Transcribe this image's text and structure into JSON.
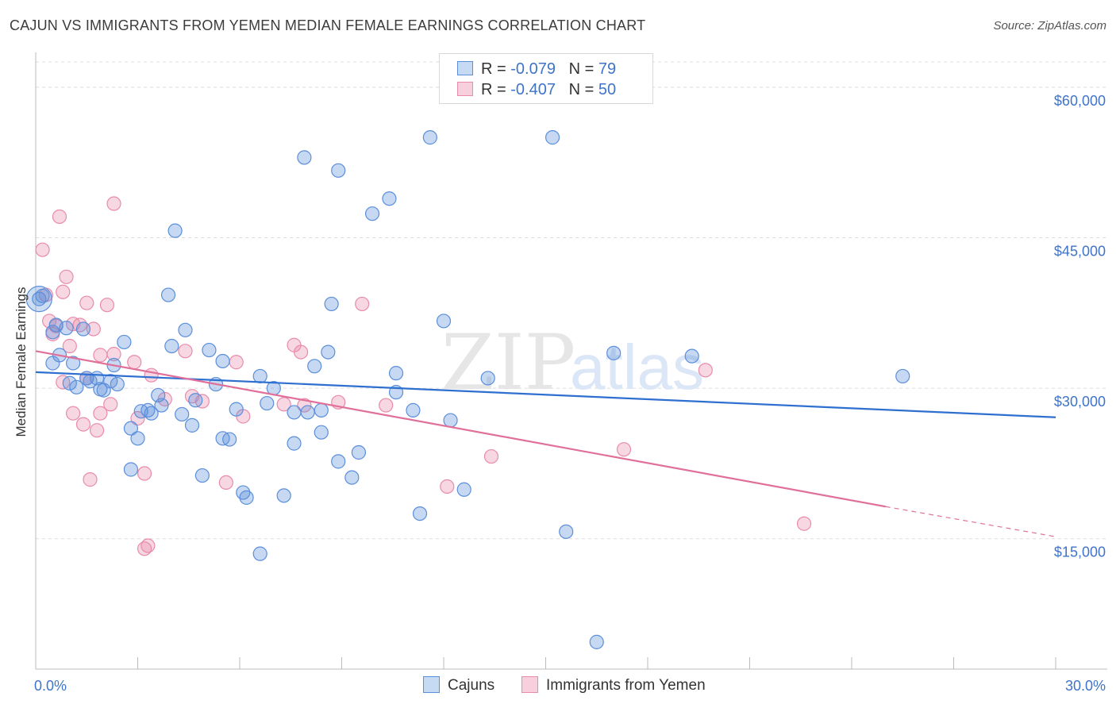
{
  "title": "CAJUN VS IMMIGRANTS FROM YEMEN MEDIAN FEMALE EARNINGS CORRELATION CHART",
  "source": "Source: ZipAtlas.com",
  "watermark": {
    "zip": "ZIP",
    "atlas": "atlas"
  },
  "legend": {
    "rows": [
      {
        "r_label": "R = ",
        "r_value": "-0.079",
        "n_label": "N = ",
        "n_value": "79"
      },
      {
        "r_label": "R = ",
        "r_value": "-0.407",
        "n_label": "N = ",
        "n_value": "50"
      }
    ]
  },
  "chart_data": {
    "type": "scatter",
    "title": "CAJUN VS IMMIGRANTS FROM YEMEN MEDIAN FEMALE EARNINGS CORRELATION CHART",
    "xlabel": "",
    "ylabel": "Median Female Earnings",
    "xlim": [
      0,
      30
    ],
    "ylim": [
      2000,
      63000
    ],
    "x_tick_labels": [
      "0.0%",
      "30.0%"
    ],
    "y_ticks": [
      15000,
      30000,
      45000,
      60000
    ],
    "y_tick_labels": [
      "$15,000",
      "$30,000",
      "$45,000",
      "$60,000"
    ],
    "grid": true,
    "colors": {
      "cajuns": "#5b8fdb",
      "yemen": "#e98bab",
      "cajuns_line": "#2e6fd0",
      "yemen_line": "#e0709a"
    },
    "series": [
      {
        "name": "Cajuns",
        "r": -0.079,
        "n": 79,
        "trend": {
          "x0": 0,
          "y0": 31600,
          "x1": 30,
          "y1": 27100
        },
        "points": [
          [
            0.1,
            38900
          ],
          [
            0.5,
            35600
          ],
          [
            0.5,
            32500
          ],
          [
            0.6,
            36300
          ],
          [
            0.7,
            33300
          ],
          [
            0.9,
            36000
          ],
          [
            1.1,
            32500
          ],
          [
            1.2,
            30100
          ],
          [
            1.4,
            35900
          ],
          [
            1.5,
            31000
          ],
          [
            1.6,
            30700
          ],
          [
            1.8,
            31000
          ],
          [
            1.9,
            29900
          ],
          [
            2.0,
            29800
          ],
          [
            2.2,
            30700
          ],
          [
            2.3,
            32300
          ],
          [
            2.4,
            30400
          ],
          [
            2.6,
            34600
          ],
          [
            2.8,
            26000
          ],
          [
            2.8,
            21900
          ],
          [
            3.0,
            25000
          ],
          [
            3.1,
            27700
          ],
          [
            3.3,
            27800
          ],
          [
            3.4,
            27500
          ],
          [
            3.6,
            29300
          ],
          [
            3.7,
            28300
          ],
          [
            3.9,
            39300
          ],
          [
            4.0,
            34200
          ],
          [
            4.1,
            45700
          ],
          [
            4.3,
            27400
          ],
          [
            4.4,
            35800
          ],
          [
            4.6,
            26300
          ],
          [
            4.7,
            28800
          ],
          [
            4.9,
            21300
          ],
          [
            5.1,
            33800
          ],
          [
            5.3,
            30400
          ],
          [
            5.5,
            25000
          ],
          [
            5.5,
            32700
          ],
          [
            5.7,
            24900
          ],
          [
            5.9,
            27900
          ],
          [
            6.1,
            19600
          ],
          [
            6.2,
            19100
          ],
          [
            6.6,
            31200
          ],
          [
            6.6,
            13500
          ],
          [
            6.8,
            28500
          ],
          [
            7.0,
            30000
          ],
          [
            7.3,
            19300
          ],
          [
            7.6,
            24500
          ],
          [
            7.6,
            27600
          ],
          [
            7.9,
            53000
          ],
          [
            8.0,
            27600
          ],
          [
            8.2,
            32200
          ],
          [
            8.4,
            25600
          ],
          [
            8.4,
            27800
          ],
          [
            8.6,
            33600
          ],
          [
            8.7,
            38400
          ],
          [
            8.9,
            51700
          ],
          [
            8.9,
            22700
          ],
          [
            9.3,
            21100
          ],
          [
            9.5,
            23600
          ],
          [
            9.9,
            47400
          ],
          [
            10.4,
            48900
          ],
          [
            10.6,
            29600
          ],
          [
            10.6,
            31500
          ],
          [
            11.1,
            27800
          ],
          [
            11.3,
            17500
          ],
          [
            11.6,
            55000
          ],
          [
            12.0,
            36700
          ],
          [
            12.2,
            26800
          ],
          [
            12.6,
            19900
          ],
          [
            13.3,
            31000
          ],
          [
            15.2,
            55000
          ],
          [
            15.6,
            15700
          ],
          [
            16.5,
            4700
          ],
          [
            17.0,
            33500
          ],
          [
            19.3,
            33200
          ],
          [
            25.5,
            31200
          ],
          [
            0.2,
            39200
          ],
          [
            1.0,
            30500
          ]
        ]
      },
      {
        "name": "Immigrants from Yemen",
        "r": -0.407,
        "n": 50,
        "trend": {
          "x0": 0,
          "y0": 33700,
          "x1": 25,
          "y1": 18200,
          "dash_x1": 30,
          "dash_y1": 15200
        },
        "points": [
          [
            0.2,
            43800
          ],
          [
            0.3,
            39300
          ],
          [
            0.4,
            36700
          ],
          [
            0.5,
            35400
          ],
          [
            0.6,
            36200
          ],
          [
            0.7,
            47100
          ],
          [
            0.8,
            30600
          ],
          [
            0.9,
            41100
          ],
          [
            1.0,
            34200
          ],
          [
            1.1,
            27500
          ],
          [
            1.3,
            36300
          ],
          [
            1.4,
            26400
          ],
          [
            1.5,
            38500
          ],
          [
            1.5,
            31000
          ],
          [
            1.6,
            20900
          ],
          [
            1.7,
            35900
          ],
          [
            1.8,
            25800
          ],
          [
            1.9,
            33300
          ],
          [
            1.9,
            27500
          ],
          [
            2.1,
            38300
          ],
          [
            2.2,
            28400
          ],
          [
            2.3,
            33400
          ],
          [
            2.3,
            48400
          ],
          [
            2.9,
            32600
          ],
          [
            3.0,
            27000
          ],
          [
            3.2,
            21500
          ],
          [
            3.2,
            14000
          ],
          [
            3.3,
            14300
          ],
          [
            3.4,
            31300
          ],
          [
            3.8,
            28900
          ],
          [
            4.4,
            33700
          ],
          [
            4.6,
            29200
          ],
          [
            4.9,
            28700
          ],
          [
            5.6,
            20600
          ],
          [
            5.9,
            32600
          ],
          [
            6.1,
            27200
          ],
          [
            7.3,
            28400
          ],
          [
            7.6,
            34300
          ],
          [
            7.8,
            33600
          ],
          [
            7.9,
            28300
          ],
          [
            8.9,
            28600
          ],
          [
            9.6,
            38400
          ],
          [
            10.3,
            28300
          ],
          [
            12.1,
            20200
          ],
          [
            13.4,
            23200
          ],
          [
            17.3,
            23900
          ],
          [
            19.7,
            31800
          ],
          [
            22.6,
            16500
          ],
          [
            0.8,
            39600
          ],
          [
            1.1,
            36400
          ]
        ]
      }
    ]
  },
  "bottom_legend": [
    "Cajuns",
    "Immigrants from Yemen"
  ]
}
